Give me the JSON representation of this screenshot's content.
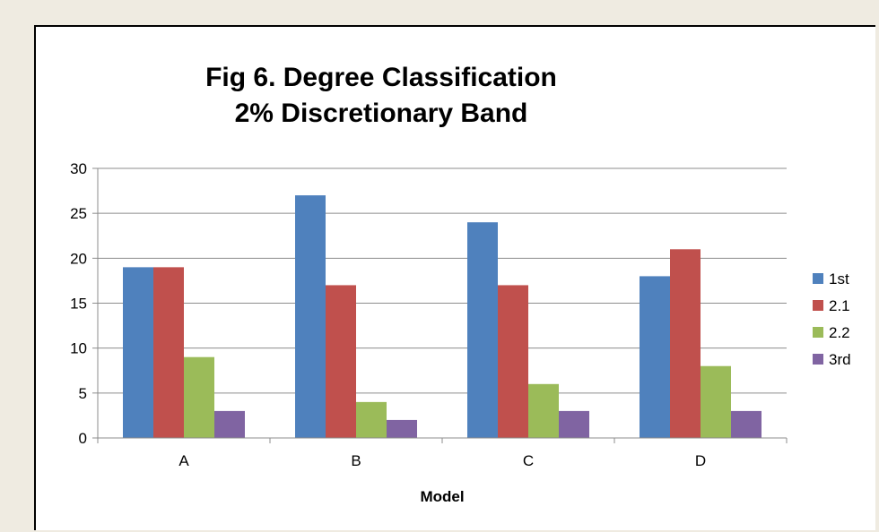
{
  "chart_data": {
    "type": "bar",
    "title_lines": [
      "Fig 6. Degree Classification",
      "2% Discretionary Band"
    ],
    "xlabel": "Model",
    "ylabel": "",
    "categories": [
      "A",
      "B",
      "C",
      "D"
    ],
    "series": [
      {
        "name": "1st",
        "color": "#4f81bd",
        "values": [
          19,
          27,
          24,
          18
        ]
      },
      {
        "name": "2.1",
        "color": "#c0504d",
        "values": [
          19,
          17,
          17,
          21
        ]
      },
      {
        "name": "2.2",
        "color": "#9bbb59",
        "values": [
          9,
          4,
          6,
          8
        ]
      },
      {
        "name": "3rd",
        "color": "#8064a2",
        "values": [
          3,
          2,
          3,
          3
        ]
      }
    ],
    "ylim": [
      0,
      30
    ],
    "yticks": [
      0,
      5,
      10,
      15,
      20,
      25,
      30
    ],
    "grid": true,
    "legend": "right"
  }
}
